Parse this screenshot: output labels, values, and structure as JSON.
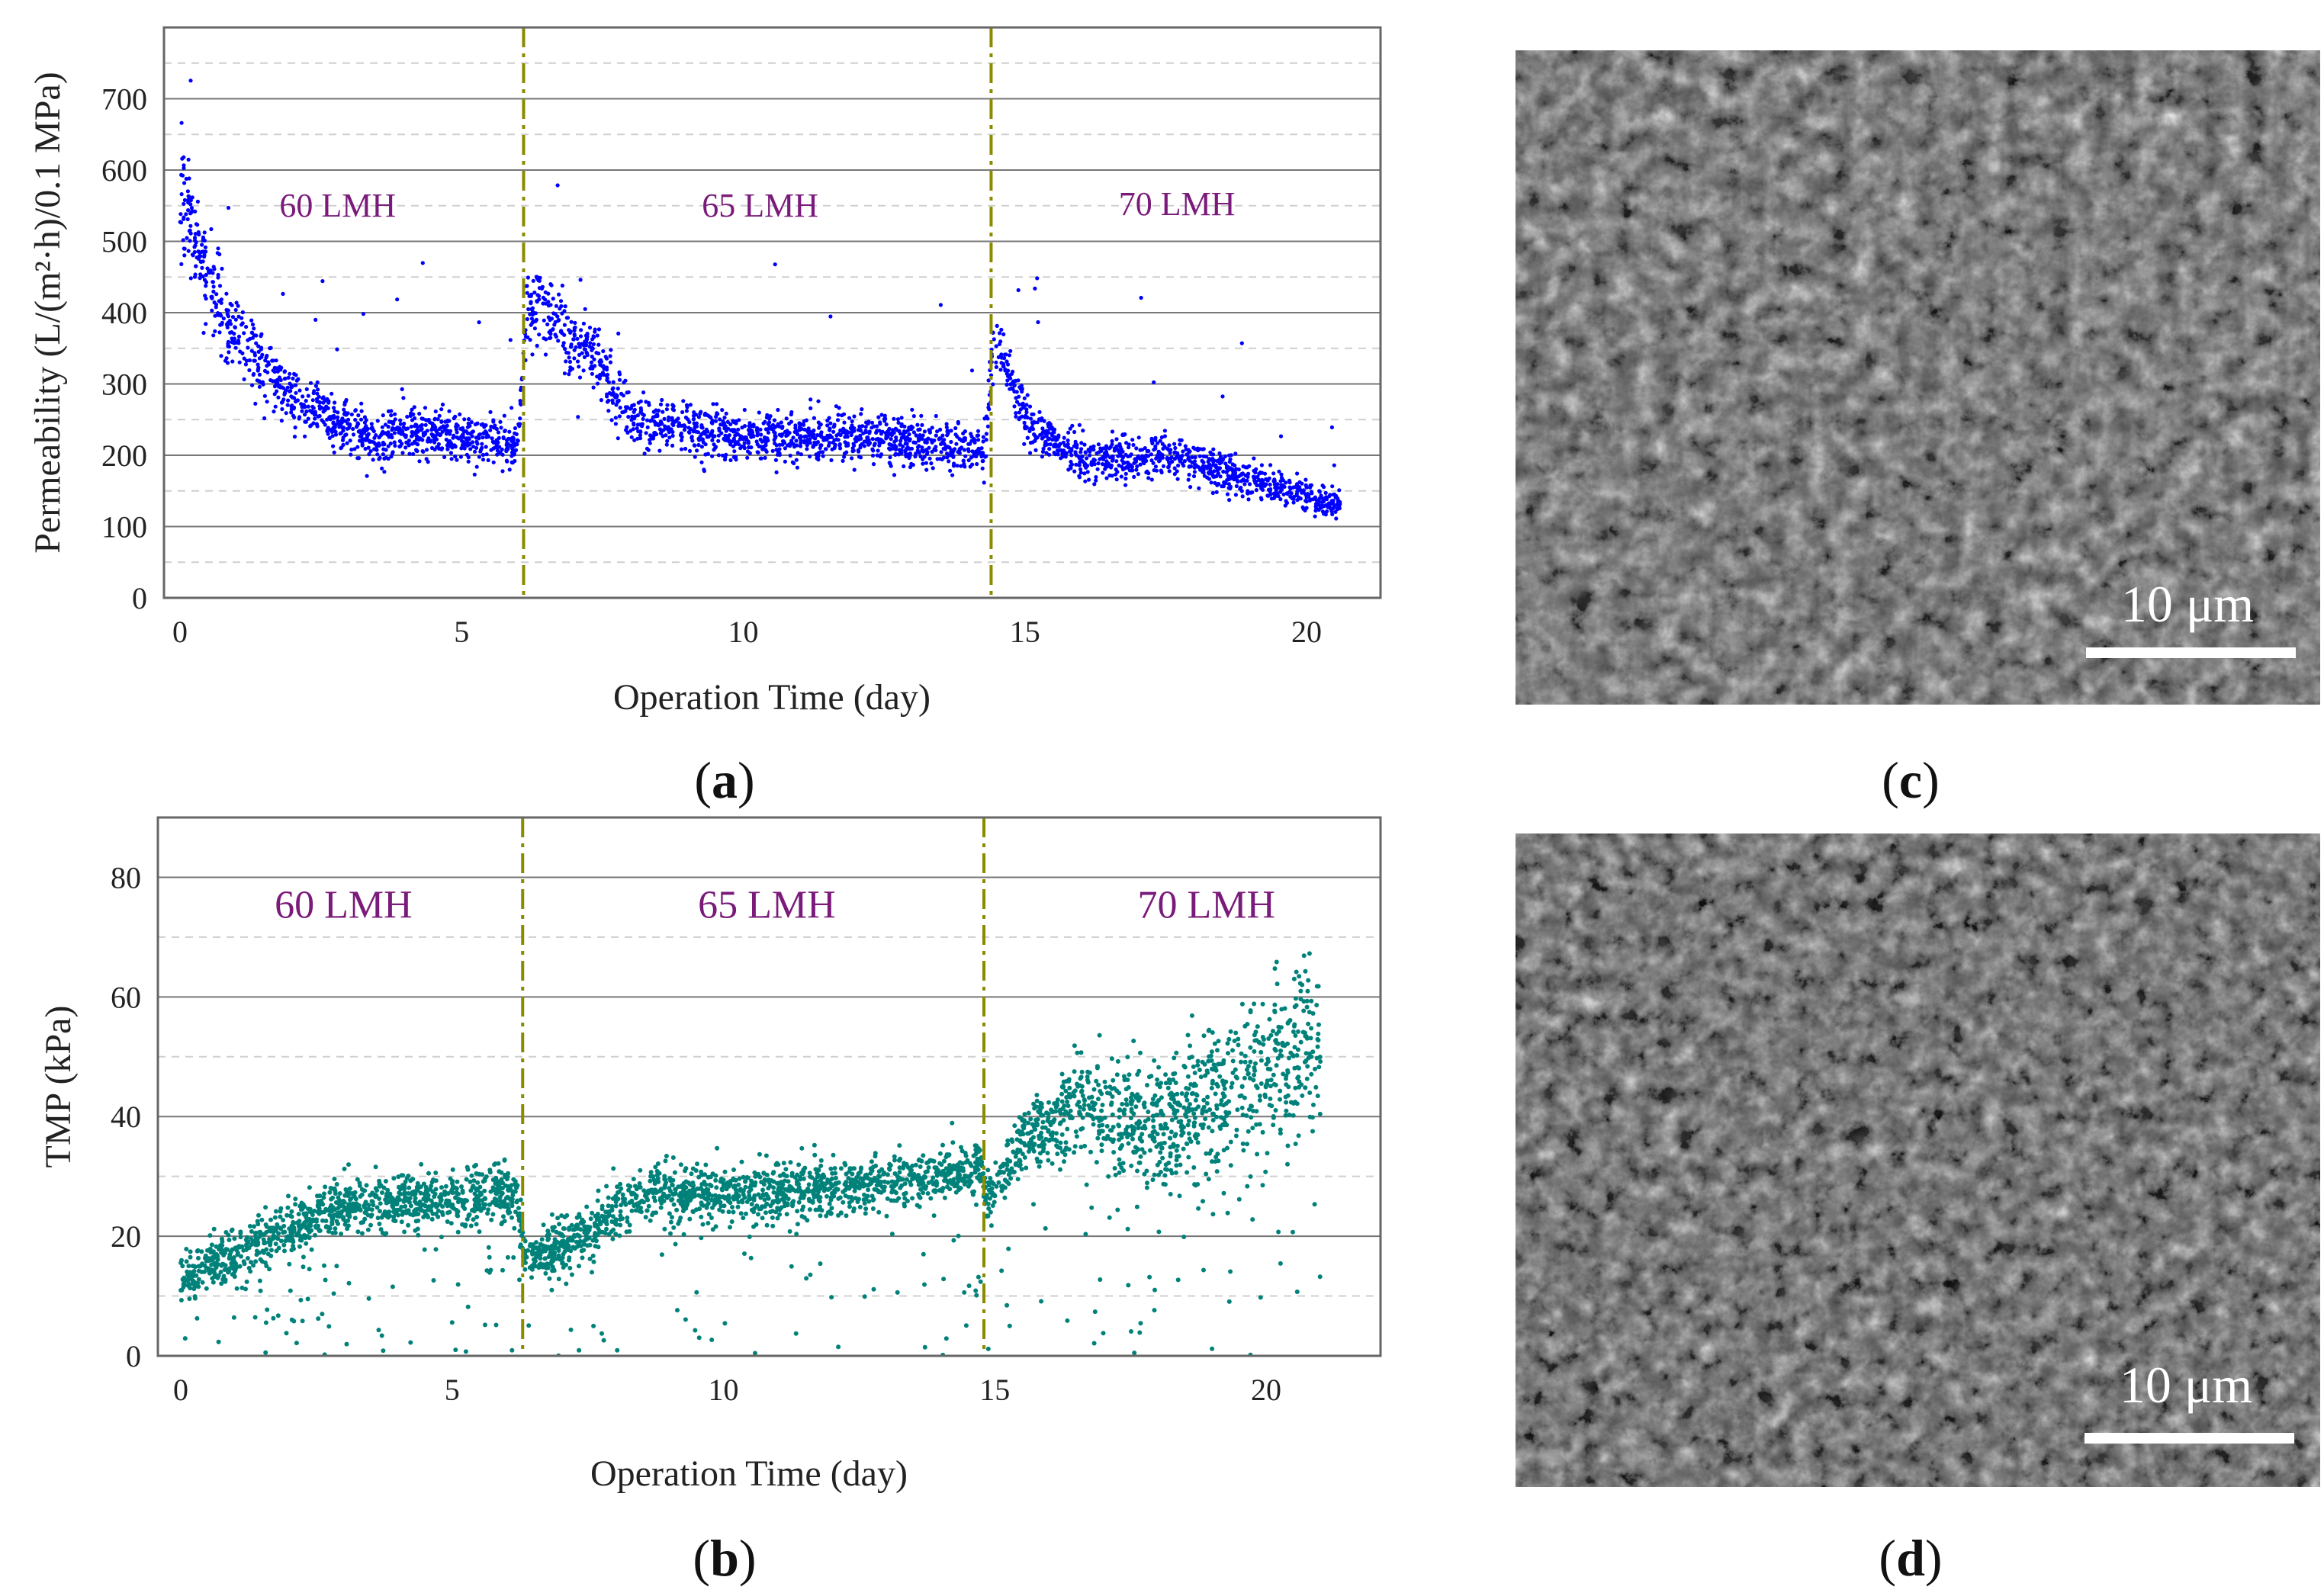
{
  "chart_data": [
    {
      "id": "a",
      "type": "scatter",
      "panel_label": "a",
      "xlabel": "Operation Time (day)",
      "ylabel": "Permeability (L/(m²·h)/0.1 MPa)",
      "xlim": [
        -0.3,
        21.0
      ],
      "ylim": [
        0,
        800
      ],
      "xticks": [
        0,
        5,
        10,
        15,
        20
      ],
      "yticks": [
        0,
        100,
        200,
        300,
        400,
        500,
        600,
        700
      ],
      "color": "#0000ff",
      "dividers": [
        6.1,
        14.4
      ],
      "regions": [
        {
          "label": "60 LMH",
          "x": 2.8,
          "y": 550
        },
        {
          "label": "65 LMH",
          "x": 10.3,
          "y": 550
        },
        {
          "label": "70 LMH",
          "x": 17.7,
          "y": 552
        }
      ],
      "trend": [
        {
          "x": 0.0,
          "y": 560
        },
        {
          "x": 0.2,
          "y": 520
        },
        {
          "x": 0.5,
          "y": 450
        },
        {
          "x": 1.0,
          "y": 370
        },
        {
          "x": 1.5,
          "y": 320
        },
        {
          "x": 2.0,
          "y": 285
        },
        {
          "x": 2.5,
          "y": 260
        },
        {
          "x": 3.0,
          "y": 240
        },
        {
          "x": 3.5,
          "y": 220
        },
        {
          "x": 4.0,
          "y": 235
        },
        {
          "x": 4.5,
          "y": 230
        },
        {
          "x": 5.0,
          "y": 225
        },
        {
          "x": 6.0,
          "y": 215
        },
        {
          "x": 6.15,
          "y": 410
        },
        {
          "x": 6.8,
          "y": 380
        },
        {
          "x": 7.5,
          "y": 320
        },
        {
          "x": 8.0,
          "y": 250
        },
        {
          "x": 9.0,
          "y": 235
        },
        {
          "x": 10.0,
          "y": 228
        },
        {
          "x": 11.0,
          "y": 225
        },
        {
          "x": 12.0,
          "y": 230
        },
        {
          "x": 13.0,
          "y": 220
        },
        {
          "x": 14.3,
          "y": 205
        },
        {
          "x": 14.45,
          "y": 370
        },
        {
          "x": 15.0,
          "y": 250
        },
        {
          "x": 16.0,
          "y": 195
        },
        {
          "x": 17.0,
          "y": 200
        },
        {
          "x": 18.0,
          "y": 190
        },
        {
          "x": 19.0,
          "y": 165
        },
        {
          "x": 20.0,
          "y": 145
        },
        {
          "x": 20.6,
          "y": 130
        }
      ]
    },
    {
      "id": "b",
      "type": "scatter",
      "panel_label": "b",
      "xlabel": "Operation Time (day)",
      "ylabel": "TMP (kPa)",
      "xlim": [
        -0.3,
        22.0
      ],
      "ylim": [
        0,
        90
      ],
      "xticks": [
        0,
        5,
        10,
        15,
        20
      ],
      "yticks": [
        0,
        20,
        40,
        60,
        80
      ],
      "color": "#00827a",
      "dividers": [
        6.3,
        14.8
      ],
      "regions": [
        {
          "label": "60 LMH",
          "x": 3.0,
          "y": 75
        },
        {
          "label": "65 LMH",
          "x": 10.8,
          "y": 75
        },
        {
          "label": "70 LMH",
          "x": 18.9,
          "y": 75
        }
      ],
      "trend": [
        {
          "x": 0.0,
          "y": 13
        },
        {
          "x": 1.0,
          "y": 17
        },
        {
          "x": 2.0,
          "y": 21
        },
        {
          "x": 3.0,
          "y": 25
        },
        {
          "x": 4.0,
          "y": 26
        },
        {
          "x": 5.0,
          "y": 26
        },
        {
          "x": 6.2,
          "y": 27
        },
        {
          "x": 6.35,
          "y": 16
        },
        {
          "x": 7.5,
          "y": 21
        },
        {
          "x": 8.5,
          "y": 27
        },
        {
          "x": 10.0,
          "y": 27
        },
        {
          "x": 12.0,
          "y": 28
        },
        {
          "x": 14.0,
          "y": 30
        },
        {
          "x": 14.7,
          "y": 32
        },
        {
          "x": 14.9,
          "y": 26
        },
        {
          "x": 15.5,
          "y": 36
        },
        {
          "x": 16.5,
          "y": 41
        },
        {
          "x": 18.0,
          "y": 38
        },
        {
          "x": 19.0,
          "y": 43
        },
        {
          "x": 20.0,
          "y": 47
        },
        {
          "x": 21.0,
          "y": 53
        }
      ]
    }
  ],
  "micrographs": [
    {
      "panel_label": "c",
      "scale_bar": "10 μm"
    },
    {
      "panel_label": "d",
      "scale_bar": "10 μm"
    }
  ]
}
